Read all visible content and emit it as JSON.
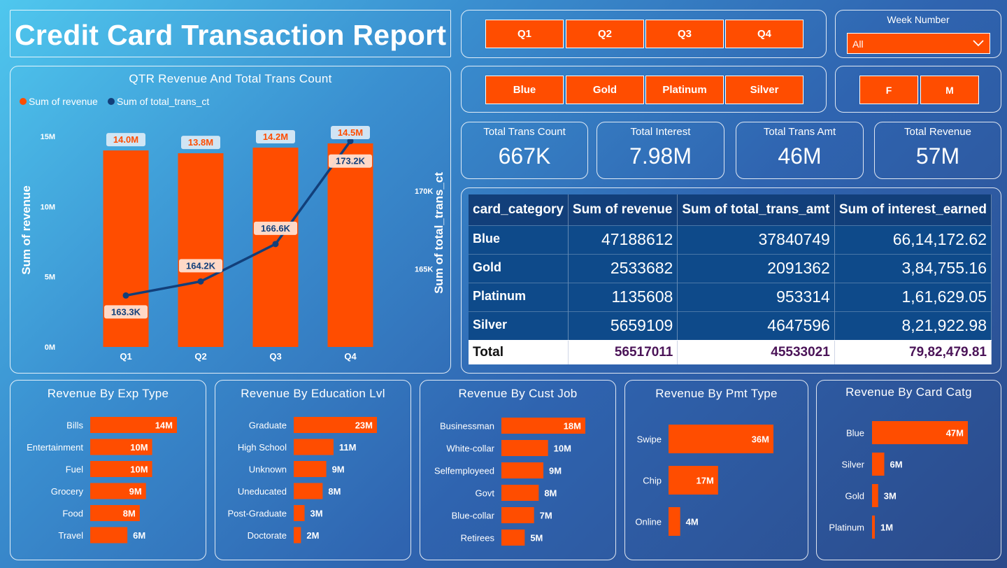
{
  "title": "Credit Card Transaction Report",
  "quarter_buttons": [
    "Q1",
    "Q2",
    "Q3",
    "Q4"
  ],
  "card_buttons": [
    "Blue",
    "Gold",
    "Platinum",
    "Silver"
  ],
  "gender_buttons": [
    "F",
    "M"
  ],
  "week": {
    "label": "Week Number",
    "value": "All"
  },
  "kpis": [
    {
      "label": "Total Trans Count",
      "value": "667K"
    },
    {
      "label": "Total Interest",
      "value": "7.98M"
    },
    {
      "label": "Total Trans Amt",
      "value": "46M"
    },
    {
      "label": "Total Revenue",
      "value": "57M"
    }
  ],
  "colors": {
    "accent": "#ff4d00",
    "line": "#123f7a",
    "table_header": "#123f7a",
    "table_body": "#0e4a8a"
  },
  "table": {
    "headers": [
      "card_category",
      "Sum of revenue",
      "Sum of total_trans_amt",
      "Sum of interest_earned"
    ],
    "rows": [
      [
        "Blue",
        "47188612",
        "37840749",
        "66,14,172.62"
      ],
      [
        "Gold",
        "2533682",
        "2091362",
        "3,84,755.16"
      ],
      [
        "Platinum",
        "1135608",
        "953314",
        "1,61,629.05"
      ],
      [
        "Silver",
        "5659109",
        "4647596",
        "8,21,922.98"
      ]
    ],
    "total": [
      "Total",
      "56517011",
      "45533021",
      "79,82,479.81"
    ]
  },
  "chart_data": [
    {
      "type": "bar",
      "title": "QTR Revenue And Total Trans Count",
      "categories": [
        "Q1",
        "Q2",
        "Q3",
        "Q4"
      ],
      "series": [
        {
          "name": "Sum of revenue",
          "values": [
            14.0,
            13.8,
            14.2,
            14.5
          ],
          "labels": [
            "14.0M",
            "13.8M",
            "14.2M",
            "14.5M"
          ],
          "axis": "left"
        },
        {
          "name": "Sum of total_trans_ct",
          "values": [
            163.3,
            164.2,
            166.6,
            173.2
          ],
          "labels": [
            "163.3K",
            "164.2K",
            "166.6K",
            "173.2K"
          ],
          "axis": "right",
          "type": "line"
        }
      ],
      "ylabel": "Sum of revenue",
      "y2label": "Sum of total_trans_ct",
      "yticks": [
        "0M",
        "5M",
        "10M",
        "15M"
      ],
      "ylim": [
        0,
        15
      ],
      "y2ticks": [
        "165K",
        "170K"
      ],
      "y2lim": [
        160,
        173.5
      ],
      "legend": "top-left"
    },
    {
      "type": "bar",
      "title": "Revenue By Exp Type",
      "categories": [
        "Bills",
        "Entertainment",
        "Fuel",
        "Grocery",
        "Food",
        "Travel"
      ],
      "values": [
        14,
        10,
        10,
        9,
        8,
        6
      ],
      "labels": [
        "14M",
        "10M",
        "10M",
        "9M",
        "8M",
        "6M"
      ]
    },
    {
      "type": "bar",
      "title": "Revenue By Education Lvl",
      "categories": [
        "Graduate",
        "High School",
        "Unknown",
        "Uneducated",
        "Post-Graduate",
        "Doctorate"
      ],
      "values": [
        23,
        11,
        9,
        8,
        3,
        2
      ],
      "labels": [
        "23M",
        "11M",
        "9M",
        "8M",
        "3M",
        "2M"
      ]
    },
    {
      "type": "bar",
      "title": "Revenue By Cust Job",
      "categories": [
        "Businessman",
        "White-collar",
        "Selfemployeed",
        "Govt",
        "Blue-collar",
        "Retirees"
      ],
      "values": [
        18,
        10,
        9,
        8,
        7,
        5
      ],
      "labels": [
        "18M",
        "10M",
        "9M",
        "8M",
        "7M",
        "5M"
      ]
    },
    {
      "type": "bar",
      "title": "Revenue By Pmt Type",
      "categories": [
        "Swipe",
        "Chip",
        "Online"
      ],
      "values": [
        36,
        17,
        4
      ],
      "labels": [
        "36M",
        "17M",
        "4M"
      ]
    },
    {
      "type": "bar",
      "title": "Revenue By Card Catg",
      "categories": [
        "Blue",
        "Silver",
        "Gold",
        "Platinum"
      ],
      "values": [
        47,
        6,
        3,
        1
      ],
      "labels": [
        "47M",
        "6M",
        "3M",
        "1M"
      ]
    }
  ]
}
